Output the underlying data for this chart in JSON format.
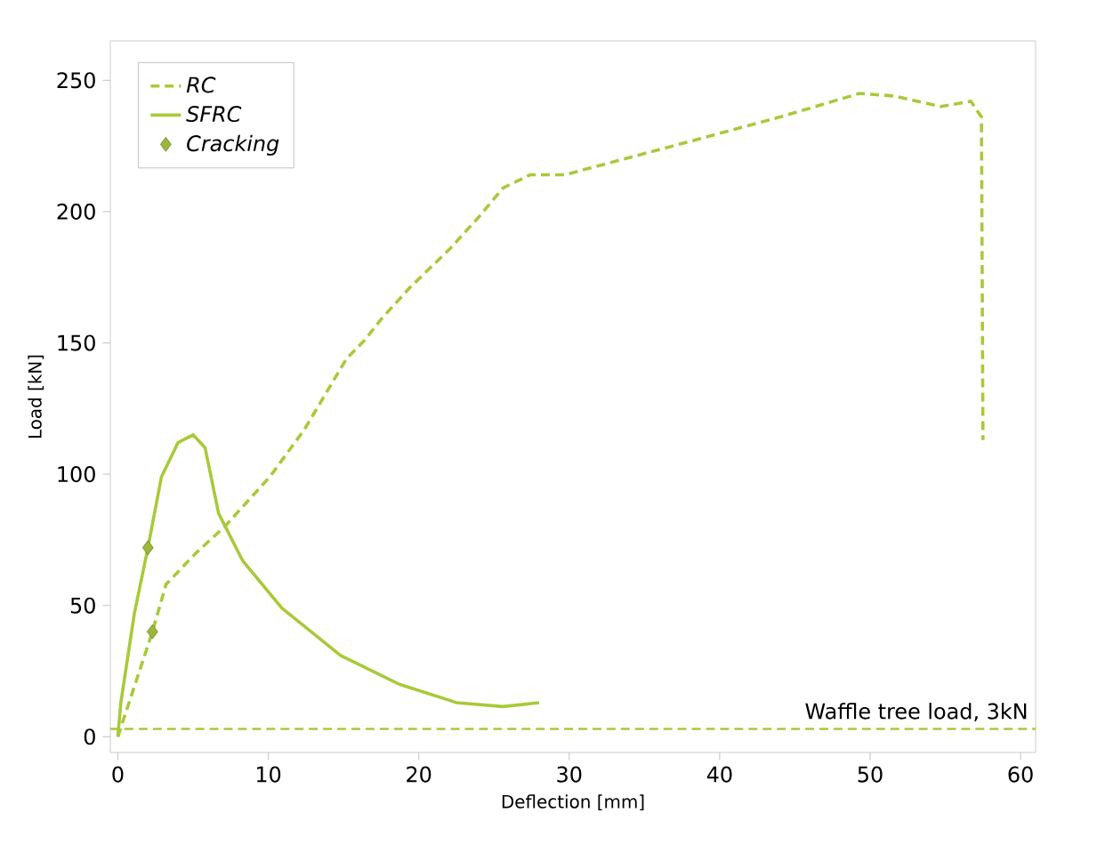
{
  "chart_data": {
    "type": "line",
    "xlabel": "Deflection [mm]",
    "ylabel": "Load [kN]",
    "xlim": [
      -0.5,
      61
    ],
    "ylim": [
      -6,
      265
    ],
    "xticks": [
      0,
      10,
      20,
      30,
      40,
      50,
      60
    ],
    "yticks": [
      0,
      50,
      100,
      150,
      200,
      250
    ],
    "legend": "top left",
    "grid": false,
    "series": [
      {
        "name": "RC",
        "color": "#a9c93a",
        "line_style": "dashed",
        "marker": "none",
        "x": [
          0,
          2.3,
          3.2,
          5.2,
          7.1,
          10.1,
          12.4,
          15.2,
          16.4,
          17.5,
          19.4,
          22.1,
          24.0,
          25.6,
          27.4,
          29.7,
          38.2,
          44.0,
          49.3,
          51.6,
          54.7,
          56.7,
          57.4,
          57.5
        ],
        "values": [
          0,
          40,
          58,
          70,
          80,
          99,
          117,
          144,
          151,
          159,
          171,
          186,
          198,
          209,
          214,
          214,
          227,
          236,
          245,
          244,
          240,
          242,
          236,
          113
        ]
      },
      {
        "name": "SFRC",
        "color": "#a9c93a",
        "line_style": "solid",
        "marker": "none",
        "x": [
          0,
          0.2,
          1.1,
          2.0,
          2.9,
          4.0,
          5.0,
          5.8,
          6.7,
          8.3,
          10.9,
          14.8,
          18.7,
          22.5,
          25.6,
          28.0
        ],
        "values": [
          0,
          13,
          47,
          72,
          99,
          112,
          115,
          110,
          85,
          67,
          49,
          31,
          20,
          13,
          11.5,
          13
        ]
      },
      {
        "name": "Cracking",
        "type": "scatter",
        "color": "#9bb83a",
        "marker": "diamond",
        "x": [
          2.0,
          2.3
        ],
        "values": [
          72,
          40
        ]
      }
    ],
    "ref_lines": [
      {
        "axis": "y",
        "value": 3,
        "label": "Waffle tree load, 3kN",
        "color": "#a9c93a",
        "line_style": "dashed"
      }
    ]
  }
}
